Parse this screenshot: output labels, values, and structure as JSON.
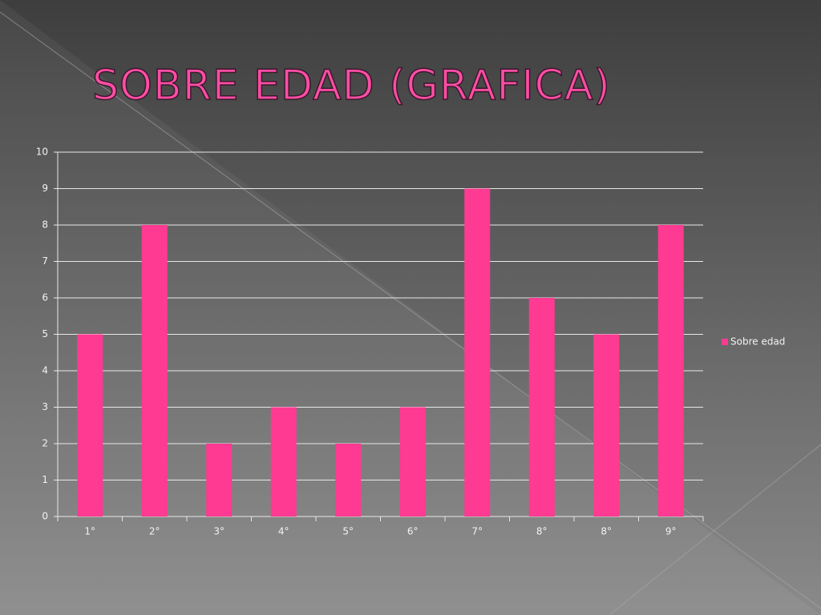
{
  "chart_data": {
    "type": "bar",
    "title": "SOBRE EDAD (GRAFICA)",
    "categories": [
      "1°",
      "2°",
      "3°",
      "4°",
      "5°",
      "6°",
      "7°",
      "8°",
      "8°",
      "9°"
    ],
    "series": [
      {
        "name": "Sobre edad",
        "color": "#ff3a92",
        "values": [
          5,
          8,
          2,
          3,
          2,
          3,
          9,
          6,
          5,
          8
        ]
      }
    ],
    "ylim": [
      0,
      10
    ],
    "yticks": [
      0,
      1,
      2,
      3,
      4,
      5,
      6,
      7,
      8,
      9,
      10
    ],
    "grid": true,
    "legend": "right"
  }
}
